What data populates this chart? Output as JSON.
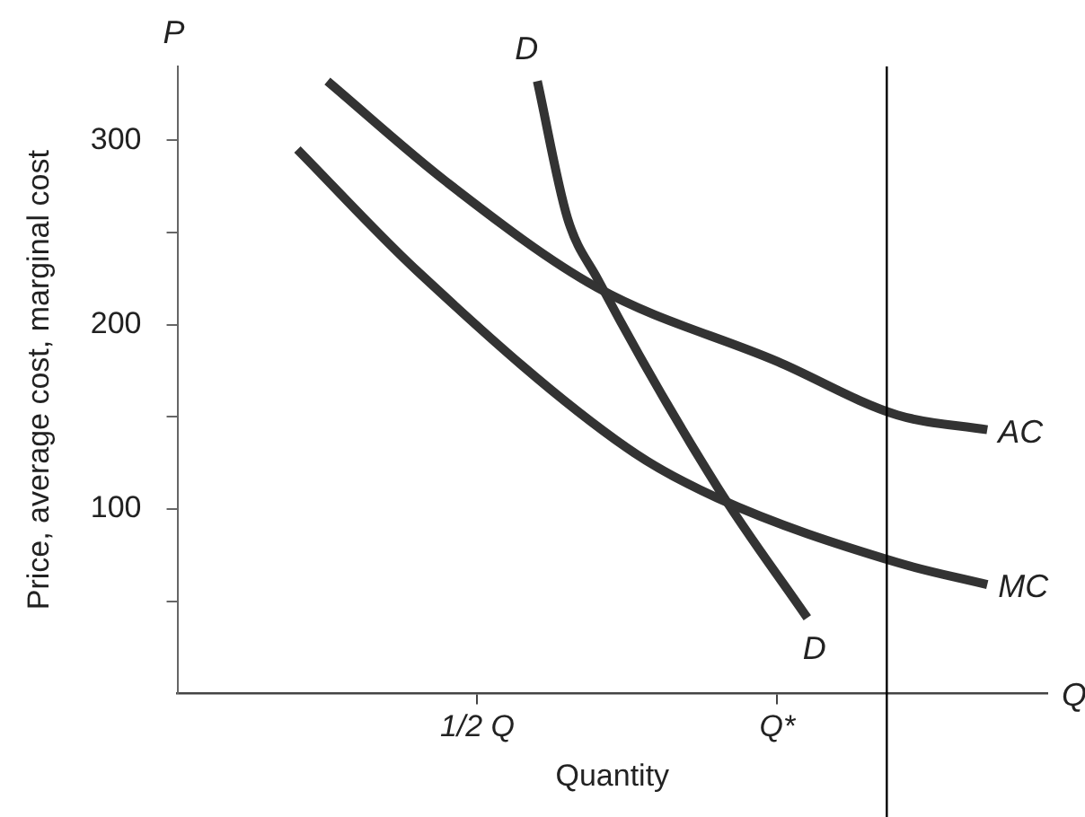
{
  "chart_data": {
    "type": "line",
    "xlabel": "Quantity",
    "ylabel": "Price, average cost, marginal cost",
    "categories": [
      null,
      null,
      null,
      null,
      null,
      null,
      null,
      null,
      null,
      null,
      "1/2 Q",
      null,
      null,
      null,
      null,
      null,
      null,
      null,
      null,
      null,
      "Q*",
      null,
      null,
      null,
      null,
      null,
      null,
      null,
      null,
      null
    ],
    "ylim": [
      0,
      340
    ],
    "yticks": [
      {
        "value": 50,
        "label": null
      },
      100,
      {
        "value": 150,
        "label": null
      },
      200,
      {
        "value": 250,
        "label": null
      },
      300
    ],
    "series": [
      {
        "name": "AC",
        "color": "#333333",
        "values": [
          null,
          null,
          null,
          null,
          null,
          332,
          null,
          null,
          null,
          277,
          null,
          null,
          null,
          null,
          220,
          null,
          null,
          null,
          null,
          null,
          180,
          null,
          null,
          null,
          151,
          null,
          null,
          143,
          null,
          null
        ]
      },
      {
        "name": "MC",
        "color": "#333333",
        "values": [
          null,
          null,
          null,
          null,
          295,
          null,
          null,
          null,
          229,
          null,
          null,
          null,
          null,
          null,
          null,
          133,
          null,
          null,
          106,
          null,
          null,
          null,
          null,
          null,
          71,
          null,
          null,
          59,
          null,
          null
        ]
      },
      {
        "name": "D",
        "color": "#333333",
        "values": [
          null,
          null,
          null,
          null,
          null,
          null,
          null,
          null,
          null,
          null,
          null,
          null,
          332,
          258,
          225,
          null,
          null,
          null,
          112,
          null,
          null,
          41,
          null,
          null,
          null,
          null,
          null,
          null,
          null,
          null
        ]
      }
    ],
    "annotations": [
      "P",
      "Q",
      "D"
    ],
    "grid": false,
    "legend": false,
    "marker": "none",
    "line_style": "solid"
  }
}
